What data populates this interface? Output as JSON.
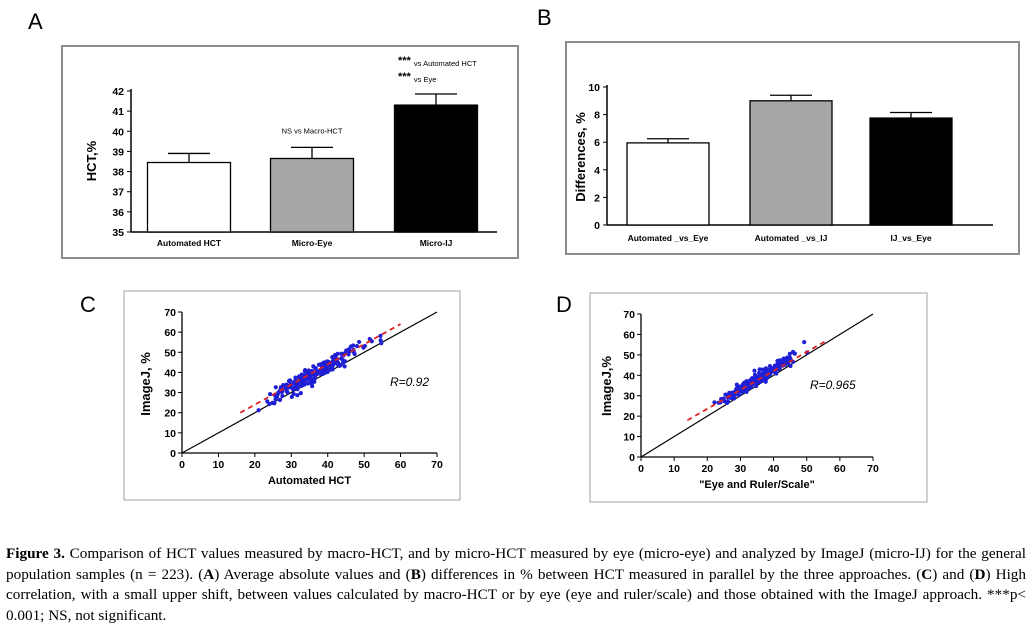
{
  "colors": {
    "white_bar": "#ffffff",
    "gray_bar": "#a6a6a6",
    "black_bar": "#000000",
    "dot": "#1f1fd6",
    "fit_line": "#e02020",
    "identity_line": "#000000",
    "panel_border": "#8c8c8c"
  },
  "chart_data": [
    {
      "panel": "A",
      "type": "bar",
      "ylabel": "HCT,%",
      "ylim": [
        35,
        42
      ],
      "yticks": [
        35,
        36,
        37,
        38,
        39,
        40,
        41,
        42
      ],
      "categories": [
        "Automated HCT",
        "Micro-Eye",
        "Micro-IJ"
      ],
      "values": [
        38.45,
        38.65,
        41.3
      ],
      "errors": [
        0.45,
        0.55,
        0.55
      ],
      "fills": [
        "white",
        "gray",
        "black"
      ],
      "annotations": [
        {
          "category": 1,
          "lines": [
            {
              "stars": "",
              "text": "NS vs Macro-HCT"
            }
          ]
        },
        {
          "category": 2,
          "lines": [
            {
              "stars": "***",
              "text": "vs Automated HCT"
            },
            {
              "stars": "***",
              "text": "vs Eye"
            }
          ]
        }
      ]
    },
    {
      "panel": "B",
      "type": "bar",
      "ylabel": "Differences, %",
      "ylim": [
        0,
        10
      ],
      "yticks": [
        0,
        2,
        4,
        6,
        8,
        10
      ],
      "categories": [
        "Automated _vs_Eye",
        "Automated _vs_IJ",
        "IJ_vs_Eye"
      ],
      "values": [
        5.95,
        9.0,
        7.75
      ],
      "errors": [
        0.3,
        0.4,
        0.4
      ],
      "fills": [
        "white",
        "gray",
        "black"
      ]
    },
    {
      "panel": "C",
      "type": "scatter",
      "xlabel": "Automated HCT",
      "ylabel": "ImageJ, %",
      "xlim": [
        0,
        70
      ],
      "ylim": [
        0,
        70
      ],
      "xticks": [
        0,
        10,
        20,
        30,
        40,
        50,
        60,
        70
      ],
      "yticks": [
        0,
        10,
        20,
        30,
        40,
        50,
        60,
        70
      ],
      "annotation": "R=0.92",
      "identity_line": [
        [
          0,
          0
        ],
        [
          70,
          70
        ]
      ],
      "fit_line": [
        [
          16,
          20
        ],
        [
          60,
          64
        ]
      ],
      "n_points": 223,
      "x_center": 36,
      "x_spread": 6,
      "y_offset": 3,
      "y_noise": 3.5
    },
    {
      "panel": "D",
      "type": "scatter",
      "xlabel": "\"Eye and Ruler/Scale\"",
      "ylabel": "ImageJ,%",
      "xlim": [
        0,
        70
      ],
      "ylim": [
        0,
        70
      ],
      "xticks": [
        0,
        10,
        20,
        30,
        40,
        50,
        60,
        70
      ],
      "yticks": [
        0,
        10,
        20,
        30,
        40,
        50,
        60,
        70
      ],
      "annotation": "R=0.965",
      "identity_line": [
        [
          0,
          0
        ],
        [
          70,
          70
        ]
      ],
      "fit_line": [
        [
          14,
          18
        ],
        [
          56,
          57
        ]
      ],
      "n_points": 223,
      "x_center": 36,
      "x_spread": 6,
      "y_offset": 3,
      "y_noise": 2.5
    }
  ],
  "caption": {
    "label": "Figure 3.",
    "t1": " Comparison of HCT values measured by macro-HCT, and by micro-HCT measured by eye (micro-eye) and analyzed by ImageJ (micro-IJ) for the general population samples (n = 223). (",
    "A": "A",
    "t2": ") Average absolute values and (",
    "B": "B",
    "t3": ") differences in % between HCT measured in parallel by the three approaches. (",
    "C": "C",
    "t4": ") and (",
    "D": "D",
    "t5": ") High correlation, with a small upper shift, between values calculated by macro-HCT or by eye (eye and ruler/scale) and those obtained with the ImageJ approach. ***p< 0.001; NS, not significant."
  }
}
